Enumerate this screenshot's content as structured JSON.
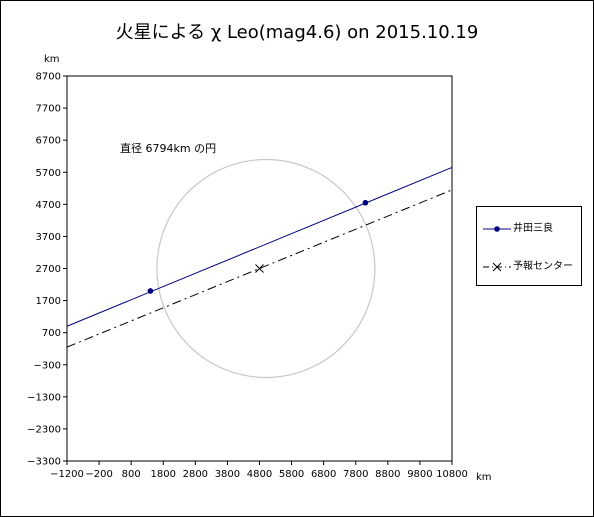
{
  "chart_data": {
    "type": "line",
    "title": "火星による χ Leo(mag4.6) on 2015.10.19",
    "xlabel": "km",
    "ylabel": "km",
    "xlim": [
      -1200,
      10800
    ],
    "ylim": [
      -3300,
      8700
    ],
    "xticks": [
      -1200,
      -200,
      800,
      1800,
      2800,
      3800,
      4800,
      5800,
      6800,
      7800,
      8800,
      9800,
      10800
    ],
    "yticks": [
      8700,
      7700,
      6700,
      5700,
      4700,
      3700,
      2700,
      1700,
      700,
      -300,
      -1300,
      -2300,
      -3300
    ],
    "grid": false,
    "legend_position": "right",
    "annotation": "直径 6794km の円",
    "circle": {
      "center": [
        5000,
        2700
      ],
      "radius": 3397
    },
    "series": [
      {
        "name": "井田三良",
        "style": "solid",
        "color": "#000080",
        "line": [
          [
            -1200,
            900
          ],
          [
            10800,
            5850
          ]
        ],
        "markers": [
          [
            1400,
            2000
          ],
          [
            8100,
            4750
          ]
        ]
      },
      {
        "name": "予報センター",
        "style": "dash-dot",
        "color": "#000000",
        "line": [
          [
            -1200,
            250
          ],
          [
            10800,
            5150
          ]
        ],
        "markers": [
          [
            4800,
            2700
          ]
        ]
      }
    ]
  }
}
